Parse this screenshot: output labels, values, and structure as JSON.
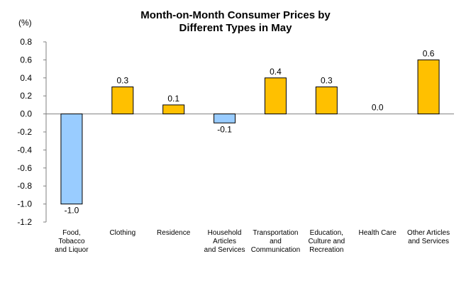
{
  "chart_data": {
    "type": "bar",
    "title": [
      "Month-on-Month Consumer Prices by",
      "Different Types in May"
    ],
    "ylabel": "(%)",
    "ylim": [
      -1.2,
      0.8
    ],
    "yticks": [
      0.8,
      0.6,
      0.4,
      0.2,
      0.0,
      -0.2,
      -0.4,
      -0.6,
      -0.8,
      -1.0,
      -1.2
    ],
    "ytick_labels": [
      "0.8",
      "0.6",
      "0.4",
      "0.2",
      "0.0",
      "-0.2",
      "-0.4",
      "-0.6",
      "-0.8",
      "-1.0",
      "-1.2"
    ],
    "categories": [
      [
        "Food,",
        "Tobacco",
        "and Liquor"
      ],
      [
        "Clothing"
      ],
      [
        "Residence"
      ],
      [
        "Household",
        "Articles",
        "and Services"
      ],
      [
        "Transportation",
        "and",
        "Communication"
      ],
      [
        "Education,",
        "Culture and",
        "Recreation"
      ],
      [
        "Health Care"
      ],
      [
        "Other Articles",
        "and Services"
      ]
    ],
    "values": [
      -1.0,
      0.3,
      0.1,
      -0.1,
      0.4,
      0.3,
      0.0,
      0.6
    ],
    "value_labels": [
      "-1.0",
      "0.3",
      "0.1",
      "-0.1",
      "0.4",
      "0.3",
      "0.0",
      "0.6"
    ],
    "grid": false,
    "legend": "none",
    "colors": {
      "positive": "#FFC000",
      "negative": "#99CCFF",
      "border": "#000000",
      "axis": "#808080"
    }
  }
}
